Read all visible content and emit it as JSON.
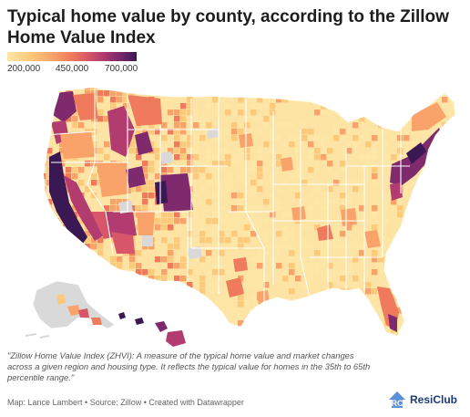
{
  "title": "Typical home value by county, according to the Zillow Home Value Index",
  "legend": {
    "ticks": [
      "200,000",
      "450,000",
      "700,000"
    ],
    "tick_values": [
      200000,
      450000,
      700000
    ],
    "colors": [
      "#fee6a6",
      "#fdc97a",
      "#f9a36a",
      "#ef7a5c",
      "#d8566a",
      "#b23b6f",
      "#7e2a6d",
      "#3a1854"
    ],
    "no_data_color": "#d9d9d9"
  },
  "map": {
    "region": "United States counties",
    "highest_value_areas": [
      "West Coast",
      "Colorado",
      "Northeast corridor",
      "Hawaii",
      "South Florida"
    ]
  },
  "note": "\"Zillow Home Value Index (ZHVI): A measure of the typical home value and market changes across a given region and housing type. It reflects the typical value for homes in the 35th to 65th percentile range.\"",
  "source": "Map: Lance Lambert • Source: Zillow • Created with Datawrapper",
  "brand": {
    "name": "ResiClub",
    "logo_icon": "rc-logo-icon"
  }
}
